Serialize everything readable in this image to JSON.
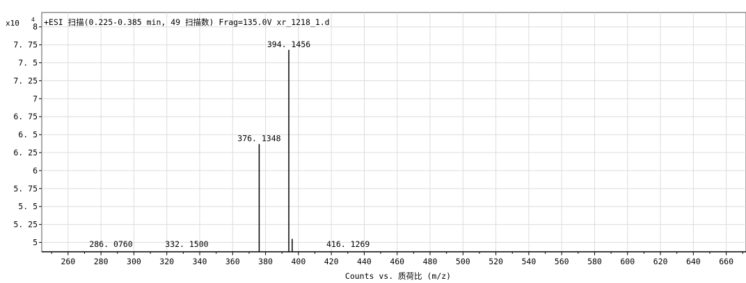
{
  "chart_data": {
    "type": "bar",
    "scale_label": "x10",
    "scale_exponent": "4",
    "title": "+ESI 扫描(0.225-0.385 min, 49 扫描数) Frag=135.0V xr_1218_1.d",
    "xlabel": "Counts vs.  质荷比 (m/z)",
    "ylabel": "",
    "xlim": [
      244,
      672
    ],
    "ylim": [
      4.87,
      8.2
    ],
    "x_ticks": [
      260,
      280,
      300,
      320,
      340,
      360,
      380,
      400,
      420,
      440,
      460,
      480,
      500,
      520,
      540,
      560,
      580,
      600,
      620,
      640,
      660
    ],
    "y_ticks": [
      5,
      5.25,
      5.5,
      5.75,
      6,
      6.25,
      6.5,
      6.75,
      7,
      7.25,
      7.5,
      7.75,
      8
    ],
    "y_tick_labels": [
      "5",
      "5. 25",
      "5. 5",
      "5. 75",
      "6",
      "6. 25",
      "6. 5",
      "6. 75",
      "7",
      "7. 25",
      "7. 5",
      "7. 75",
      "8"
    ],
    "grid": true,
    "peaks": [
      {
        "mz": 286.076,
        "intensity": 4.87,
        "label": "286. 0760"
      },
      {
        "mz": 332.15,
        "intensity": 4.87,
        "label": "332. 1500"
      },
      {
        "mz": 376.1348,
        "intensity": 6.37,
        "label": "376. 1348"
      },
      {
        "mz": 394.1456,
        "intensity": 7.68,
        "label": "394. 1456"
      },
      {
        "mz": 396.2,
        "intensity": 5.05,
        "label": ""
      },
      {
        "mz": 416.1269,
        "intensity": 4.87,
        "label": "416. 1269"
      }
    ]
  }
}
